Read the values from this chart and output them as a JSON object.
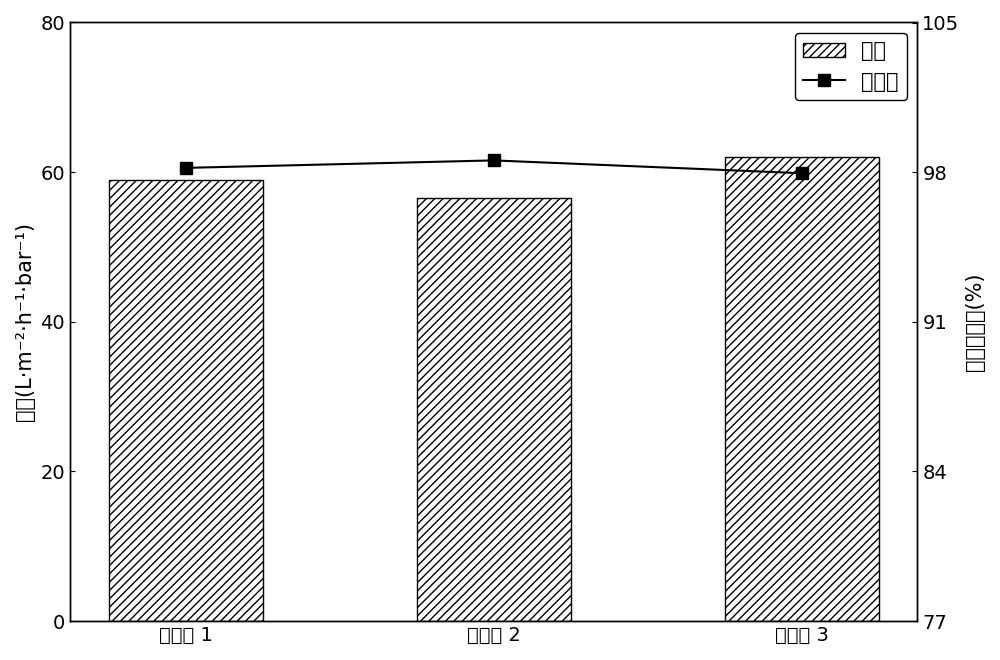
{
  "categories": [
    "实施例 1",
    "实施例 2",
    "实施例 3"
  ],
  "bar_values": [
    59.0,
    56.5,
    62.0
  ],
  "line_values": [
    98.2,
    98.55,
    97.95
  ],
  "bar_color": "#ffffff",
  "bar_edgecolor": "#000000",
  "line_color": "#000000",
  "marker": "s",
  "marker_color": "#000000",
  "ylabel_left": "通量(L·m⁻²·h⁻¹·bar⁻¹)",
  "ylabel_right": "染料截留率(%)",
  "ylim_left": [
    0,
    80
  ],
  "ylim_right": [
    77,
    105
  ],
  "yticks_left": [
    0,
    20,
    40,
    60,
    80
  ],
  "yticks_right": [
    77,
    84,
    91,
    98,
    105
  ],
  "legend_labels": [
    "通量",
    "截留率"
  ],
  "hatch": "////",
  "bar_width": 0.5,
  "figsize": [
    10.0,
    6.6
  ],
  "dpi": 100,
  "fontsize": 15,
  "tick_fontsize": 14,
  "bg_color": "#ffffff"
}
